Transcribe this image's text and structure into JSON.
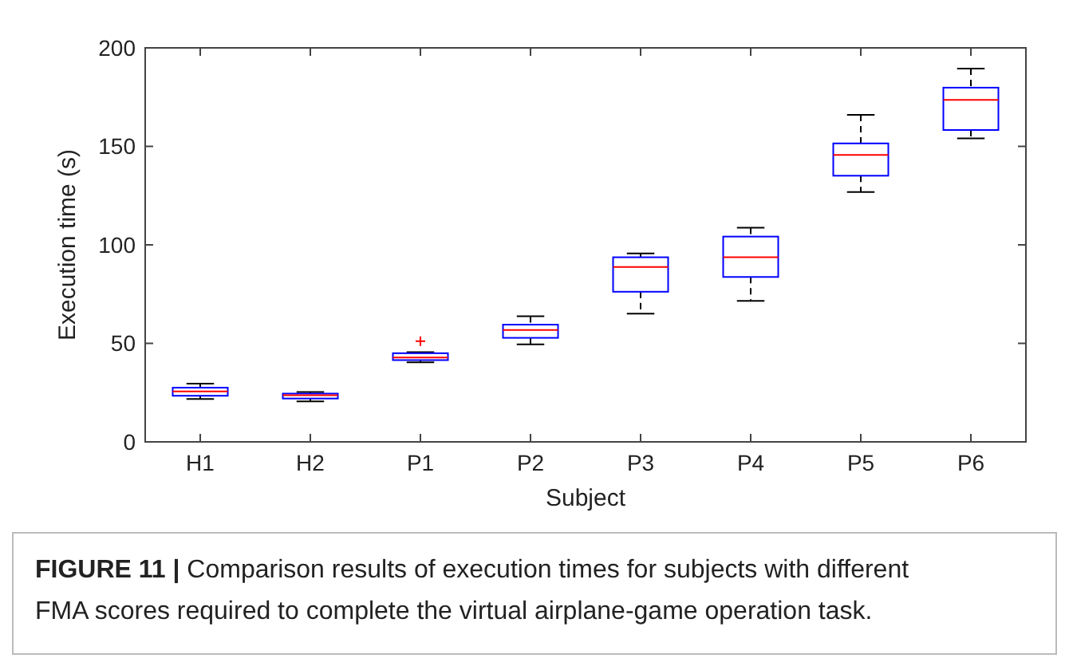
{
  "chart_data": {
    "type": "box",
    "xlabel": "Subject",
    "ylabel": "Execution time (s)",
    "categories": [
      "H1",
      "H2",
      "P1",
      "P2",
      "P3",
      "P4",
      "P5",
      "P6"
    ],
    "ylim": [
      0,
      200
    ],
    "yticks": [
      0,
      50,
      100,
      150,
      200
    ],
    "color": "#0000ff",
    "grid": false,
    "boxes": [
      {
        "low": 21.8,
        "q1": 23.4,
        "median": 25.6,
        "q3": 27.5,
        "high": 29.6
      },
      {
        "low": 20.5,
        "q1": 22,
        "median": 23.7,
        "q3": 24.5,
        "high": 25.3
      },
      {
        "low": 40.4,
        "q1": 41.5,
        "median": 42.8,
        "q3": 45,
        "high": 45.5,
        "outliers": [
          51.1
        ]
      },
      {
        "low": 49.5,
        "q1": 52.8,
        "median": 56.8,
        "q3": 59.5,
        "high": 63.8
      },
      {
        "low": 65.1,
        "q1": 76.2,
        "median": 88.8,
        "q3": 93.7,
        "high": 95.6
      },
      {
        "low": 71.6,
        "q1": 83.7,
        "median": 93.7,
        "q3": 104.2,
        "high": 108.7
      },
      {
        "low": 126.8,
        "q1": 135.1,
        "median": 145.6,
        "q3": 151.5,
        "high": 166
      },
      {
        "low": 154,
        "q1": 158.3,
        "median": 173.6,
        "q3": 179.8,
        "high": 189.5
      }
    ],
    "annotations": [
      "FIGURE 11 | Comparison results of execution times for subjects with different FMA scores required to complete the virtual airplane-game operation task."
    ]
  }
}
